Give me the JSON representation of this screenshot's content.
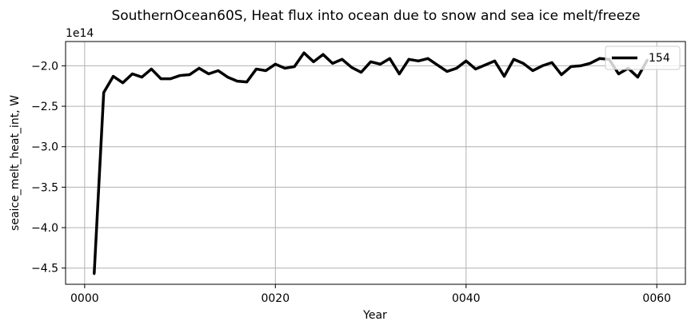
{
  "chart_data": {
    "type": "line",
    "title": "SouthernOcean60S, Heat flux into ocean due to snow and sea ice melt/freeze",
    "xlabel": "Year",
    "ylabel": "seaice_melt_heat_int, W",
    "y_offset_label": "1e14",
    "xlim": [
      -2,
      63
    ],
    "ylim": [
      -4.7,
      -1.7
    ],
    "x_ticks": [
      0,
      20,
      40,
      60
    ],
    "x_tick_labels": [
      "0000",
      "0020",
      "0040",
      "0060"
    ],
    "y_ticks": [
      -4.5,
      -4.0,
      -3.5,
      -3.0,
      -2.5,
      -2.0
    ],
    "y_tick_labels": [
      "−4.5",
      "−4.0",
      "−3.5",
      "−3.0",
      "−2.5",
      "−2.0"
    ],
    "grid": true,
    "legend_position": "top-right",
    "series": [
      {
        "name": "154",
        "color": "#000000",
        "x": [
          1,
          2,
          3,
          4,
          5,
          6,
          7,
          8,
          9,
          10,
          11,
          12,
          13,
          14,
          15,
          16,
          17,
          18,
          19,
          20,
          21,
          22,
          23,
          24,
          25,
          26,
          27,
          28,
          29,
          30,
          31,
          32,
          33,
          34,
          35,
          36,
          37,
          38,
          39,
          40,
          41,
          42,
          43,
          44,
          45,
          46,
          47,
          48,
          49,
          50,
          51,
          52,
          53,
          54,
          55,
          56,
          57,
          58,
          59
        ],
        "values": [
          -4.57,
          -2.33,
          -2.13,
          -2.21,
          -2.1,
          -2.14,
          -2.04,
          -2.16,
          -2.16,
          -2.12,
          -2.11,
          -2.03,
          -2.1,
          -2.06,
          -2.14,
          -2.19,
          -2.2,
          -2.04,
          -2.06,
          -1.98,
          -2.03,
          -2.01,
          -1.84,
          -1.95,
          -1.86,
          -1.97,
          -1.92,
          -2.02,
          -2.08,
          -1.95,
          -1.98,
          -1.91,
          -2.1,
          -1.92,
          -1.94,
          -1.91,
          -1.99,
          -2.07,
          -2.03,
          -1.94,
          -2.04,
          -1.99,
          -1.94,
          -2.13,
          -1.92,
          -1.97,
          -2.06,
          -2.0,
          -1.96,
          -2.11,
          -2.01,
          -2.0,
          -1.97,
          -1.91,
          -1.92,
          -2.1,
          -2.03,
          -2.14,
          -1.93
        ]
      }
    ]
  }
}
